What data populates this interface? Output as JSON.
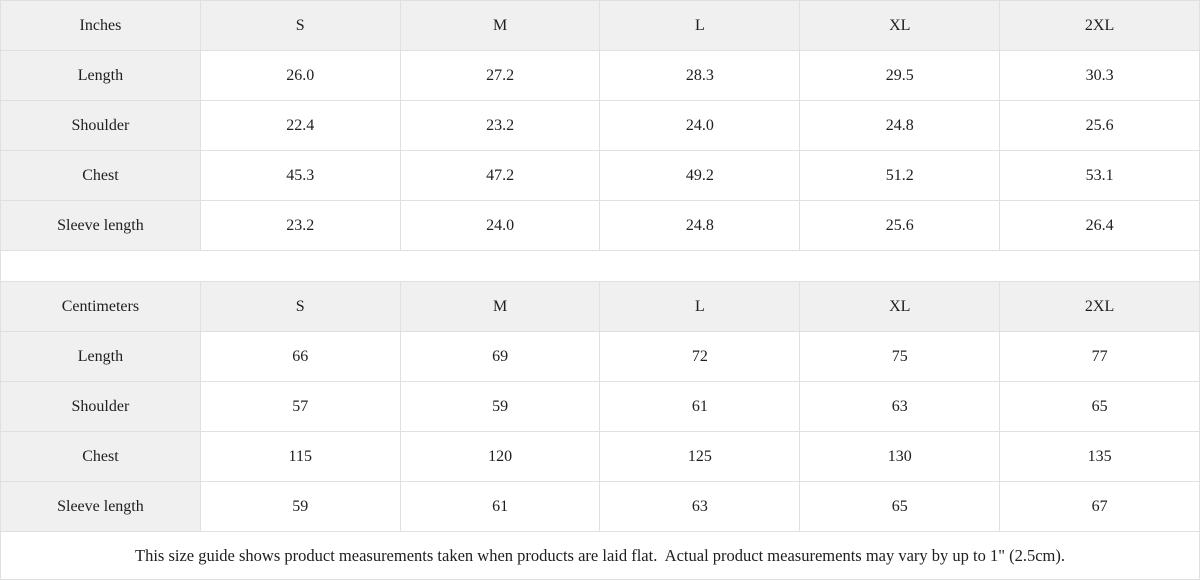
{
  "colors": {
    "header_background": "#f0f0f0",
    "border": "#e0e0e0",
    "text": "#202020",
    "background": "#ffffff"
  },
  "inches_table": {
    "unit_label": "Inches",
    "sizes": [
      "S",
      "M",
      "L",
      "XL",
      "2XL"
    ],
    "rows": [
      {
        "label": "Length",
        "values": [
          "26.0",
          "27.2",
          "28.3",
          "29.5",
          "30.3"
        ]
      },
      {
        "label": "Shoulder",
        "values": [
          "22.4",
          "23.2",
          "24.0",
          "24.8",
          "25.6"
        ]
      },
      {
        "label": "Chest",
        "values": [
          "45.3",
          "47.2",
          "49.2",
          "51.2",
          "53.1"
        ]
      },
      {
        "label": "Sleeve length",
        "values": [
          "23.2",
          "24.0",
          "24.8",
          "25.6",
          "26.4"
        ]
      }
    ]
  },
  "centimeters_table": {
    "unit_label": "Centimeters",
    "sizes": [
      "S",
      "M",
      "L",
      "XL",
      "2XL"
    ],
    "rows": [
      {
        "label": "Length",
        "values": [
          "66",
          "69",
          "72",
          "75",
          "77"
        ]
      },
      {
        "label": "Shoulder",
        "values": [
          "57",
          "59",
          "61",
          "63",
          "65"
        ]
      },
      {
        "label": "Chest",
        "values": [
          "115",
          "120",
          "125",
          "130",
          "135"
        ]
      },
      {
        "label": "Sleeve length",
        "values": [
          "59",
          "61",
          "63",
          "65",
          "67"
        ]
      }
    ]
  },
  "footer": {
    "note": "This size guide shows product measurements taken when products are laid flat.  Actual product measurements may vary by up to 1\" (2.5cm)."
  }
}
